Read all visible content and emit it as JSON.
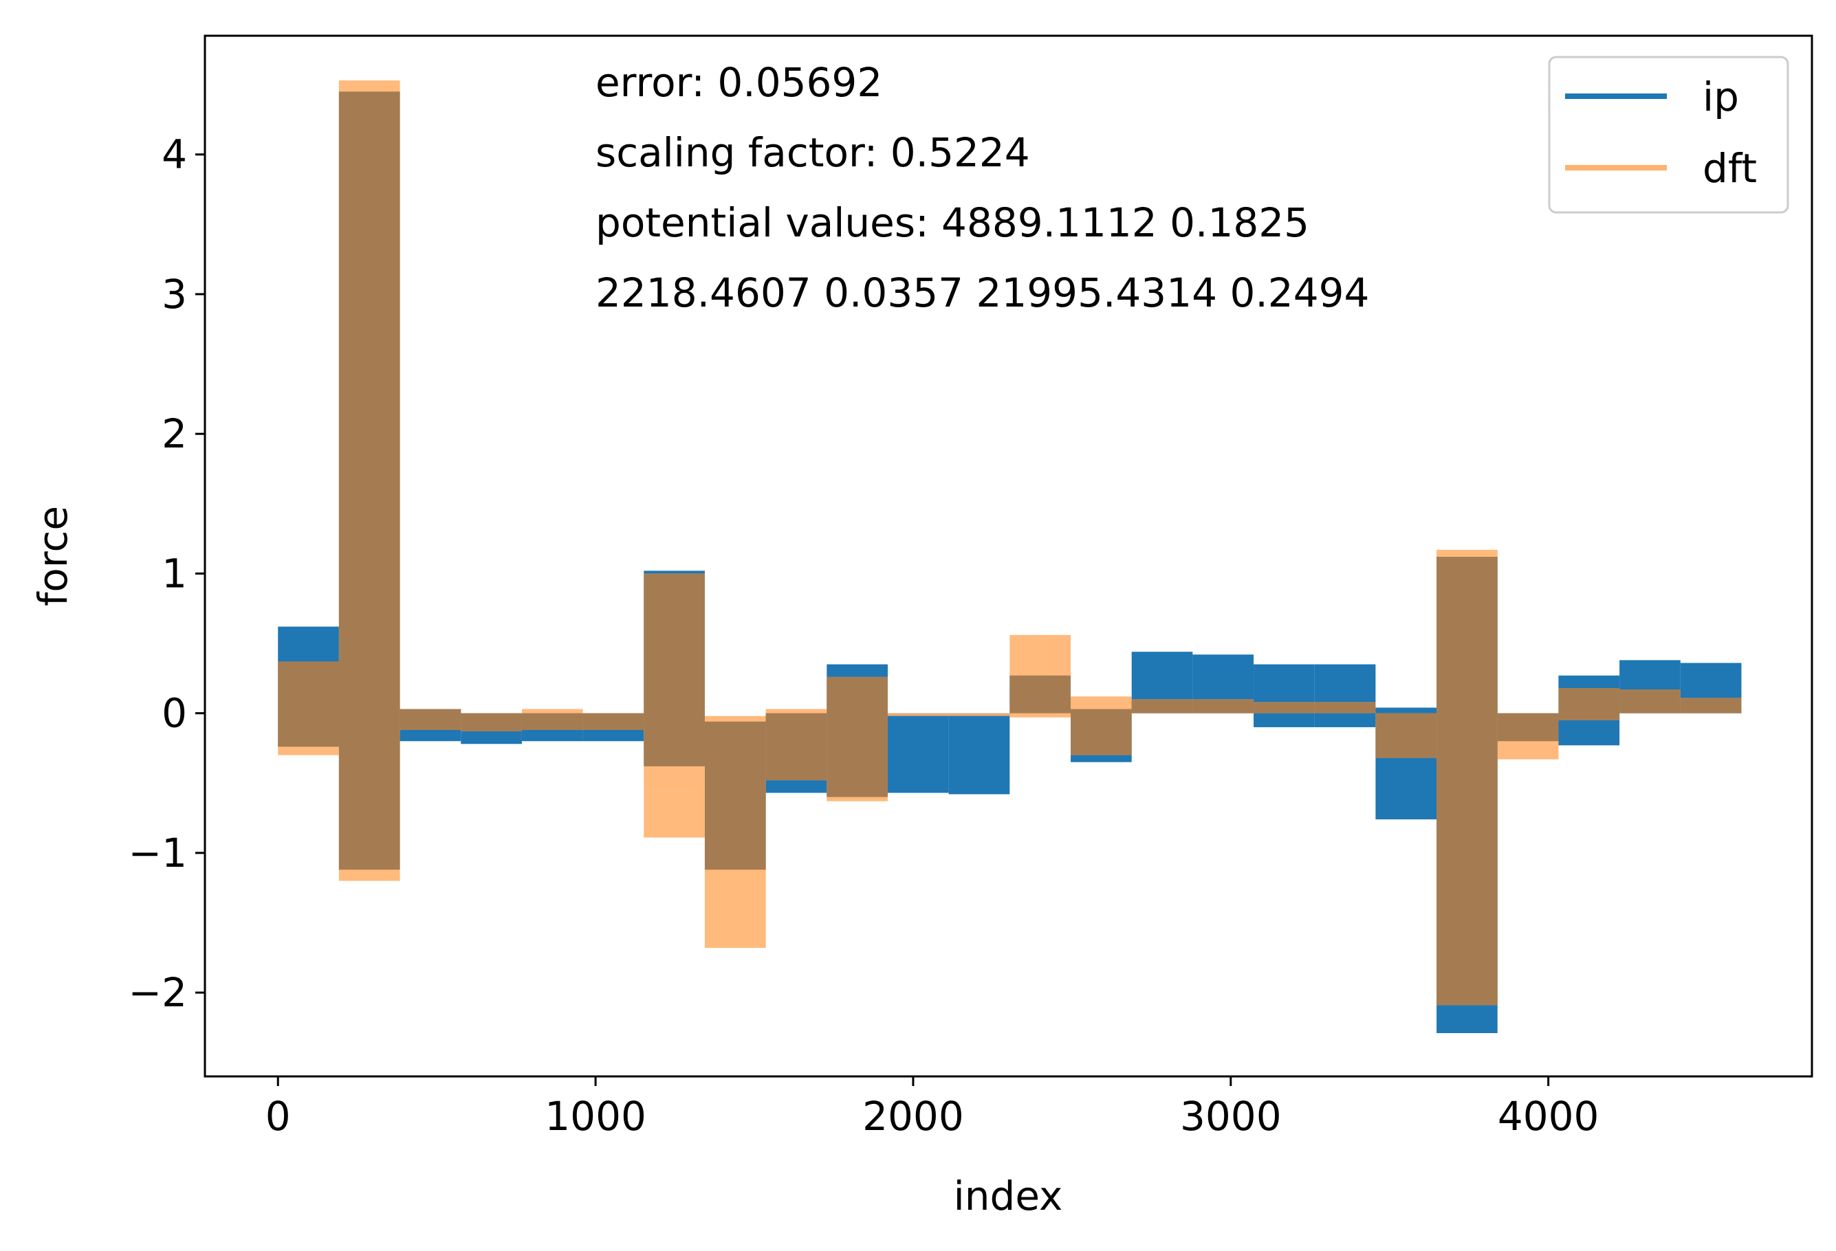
{
  "chart_data": {
    "type": "line",
    "title": "",
    "xlabel": "index",
    "ylabel": "force",
    "xlim": [
      -230,
      4830
    ],
    "ylim": [
      -2.6,
      4.85
    ],
    "xticks": [
      0,
      1000,
      2000,
      3000,
      4000
    ],
    "xtick_labels": [
      "0",
      "1000",
      "2000",
      "3000",
      "4000"
    ],
    "yticks": [
      -2,
      -1,
      0,
      1,
      2,
      3,
      4
    ],
    "ytick_labels": [
      "−2",
      "−1",
      "0",
      "1",
      "2",
      "3",
      "4"
    ],
    "legend": {
      "placement": "top-right"
    },
    "annotations": [
      "error: 0.05692",
      "scaling factor: 0.5224",
      "potential values: 4889.1112 0.1825",
      "2218.4607 0.0357 21995.4314 0.2494"
    ],
    "grid": false,
    "band_width": 192,
    "band_starts": [
      0,
      192,
      384,
      576,
      768,
      960,
      1152,
      1344,
      1536,
      1728,
      1920,
      2112,
      2304,
      2496,
      2688,
      2880,
      3072,
      3264,
      3456,
      3648,
      3840,
      4032,
      4224,
      4416
    ],
    "series": [
      {
        "name": "ip",
        "color": "#1f77b4",
        "band_high": [
          0.62,
          4.45,
          0.03,
          0.0,
          0.0,
          0.0,
          1.02,
          -0.06,
          0.0,
          0.35,
          0.0,
          0.0,
          0.27,
          0.03,
          0.44,
          0.42,
          0.35,
          0.35,
          0.04,
          1.12,
          0.0,
          0.27,
          0.38,
          0.36
        ],
        "band_low": [
          -0.24,
          -1.12,
          -0.2,
          -0.22,
          -0.2,
          -0.2,
          -0.38,
          -1.12,
          -0.57,
          -0.6,
          -0.57,
          -0.58,
          0.0,
          -0.35,
          0.0,
          0.0,
          -0.1,
          -0.1,
          -0.76,
          -2.29,
          -0.2,
          -0.23,
          0.0,
          0.0
        ]
      },
      {
        "name": "dft",
        "color": "#ffb26e",
        "band_high": [
          0.37,
          4.53,
          0.03,
          0.0,
          0.03,
          0.0,
          1.0,
          -0.02,
          0.03,
          0.26,
          0.0,
          0.0,
          0.56,
          0.12,
          0.1,
          0.1,
          0.08,
          0.08,
          0.0,
          1.17,
          0.0,
          0.18,
          0.17,
          0.11
        ],
        "band_low": [
          -0.3,
          -1.2,
          -0.12,
          -0.13,
          -0.12,
          -0.12,
          -0.89,
          -1.68,
          -0.48,
          -0.63,
          0.0,
          0.0,
          -0.03,
          -0.3,
          0.0,
          0.0,
          0.0,
          0.0,
          -0.32,
          -2.09,
          -0.33,
          -0.05,
          0.0,
          0.0
        ]
      }
    ]
  }
}
